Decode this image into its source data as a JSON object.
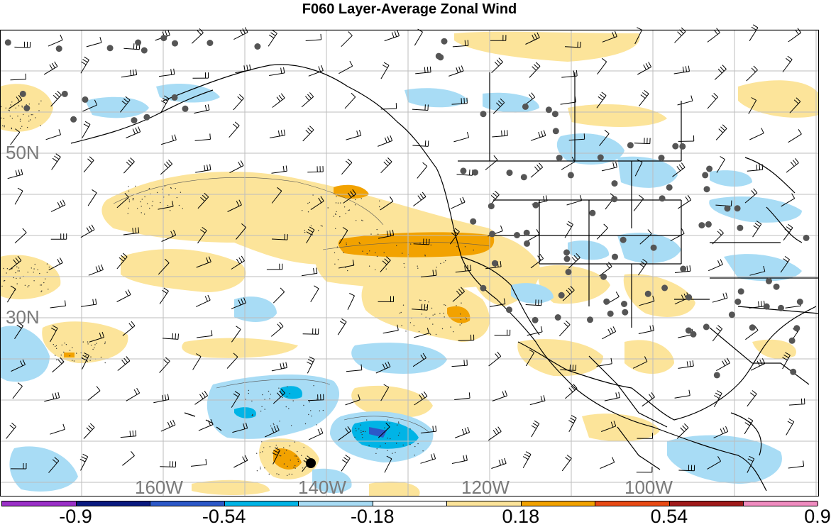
{
  "title": "F060 Layer-Average Zonal Wind",
  "latitude_labels": [
    "50N",
    "30N"
  ],
  "longitude_labels": [
    "160W",
    "140W",
    "120W",
    "100W"
  ],
  "colorbar": {
    "labels": [
      "-0.9",
      "-0.54",
      "-0.18",
      "0.18",
      "0.54",
      "0.9"
    ],
    "colors": [
      "#9b30c8",
      "#0a1a80",
      "#2c58c8",
      "#00b4e6",
      "#a8dcf5",
      "#ffffff",
      "#fce49a",
      "#f2a200",
      "#e84a14",
      "#a01a1a",
      "#f08cc0"
    ]
  },
  "fill_colors": {
    "light_blue": "#a8dcf5",
    "blue": "#00b4e6",
    "dark_blue": "#2c58c8",
    "light_yellow": "#fce49a",
    "orange": "#f2a200",
    "red": "#e84a14"
  }
}
